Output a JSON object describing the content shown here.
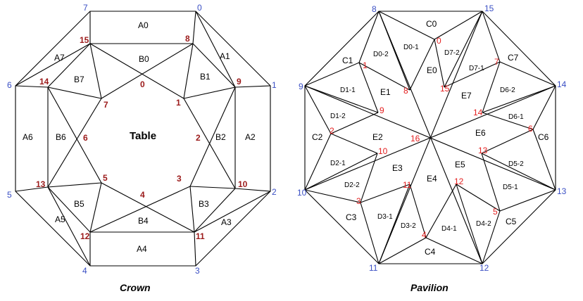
{
  "crown": {
    "title": "Crown",
    "center_label": "Table",
    "girdle_labels": [
      "0",
      "1",
      "2",
      "3",
      "4",
      "5",
      "6",
      "7"
    ],
    "table_labels": [
      "0",
      "1",
      "2",
      "3",
      "4",
      "5",
      "6",
      "7"
    ],
    "star_labels": [
      "8",
      "9",
      "10",
      "11",
      "12",
      "13",
      "14",
      "15"
    ],
    "faces": {
      "A0": "A0",
      "A1": "A1",
      "A2": "A2",
      "A3": "A3",
      "A4": "A4",
      "A5": "A5",
      "A6": "A6",
      "A7": "A7",
      "B0": "B0",
      "B1": "B1",
      "B2": "B2",
      "B3": "B3",
      "B4": "B4",
      "B5": "B5",
      "B6": "B6",
      "B7": "B7"
    }
  },
  "pavilion": {
    "title": "Pavilion",
    "girdle_labels": [
      "8",
      "9",
      "10",
      "11",
      "12",
      "13",
      "14",
      "15"
    ],
    "inner_labels": [
      "0",
      "1",
      "2",
      "3",
      "4",
      "5",
      "6",
      "7",
      "8",
      "9",
      "10",
      "11",
      "12",
      "13",
      "14",
      "15",
      "16"
    ],
    "faces": {
      "C0": "C0",
      "C1": "C1",
      "C2": "C2",
      "C3": "C3",
      "C4": "C4",
      "C5": "C5",
      "C6": "C6",
      "C7": "C7",
      "E0": "E0",
      "E1": "E1",
      "E2": "E2",
      "E3": "E3",
      "E4": "E4",
      "E5": "E5",
      "E6": "E6",
      "E7": "E7",
      "D0_1": "D0-1",
      "D0_2": "D0-2",
      "D1_1": "D1-1",
      "D1_2": "D1-2",
      "D2_1": "D2-1",
      "D2_2": "D2-2",
      "D3_1": "D3-1",
      "D3_2": "D3-2",
      "D4_1": "D4-1",
      "D4_2": "D4-2",
      "D5_1": "D5-1",
      "D5_2": "D5-2",
      "D6_1": "D6-1",
      "D6_2": "D6-2",
      "D7_1": "D7-1",
      "D7_2": "D7-2"
    }
  },
  "colors": {
    "outer_vertex": "#3a4fc4",
    "crown_inner_vertex": "#9b1a1a",
    "pavilion_inner_vertex": "#e32020",
    "edge": "#000000"
  }
}
